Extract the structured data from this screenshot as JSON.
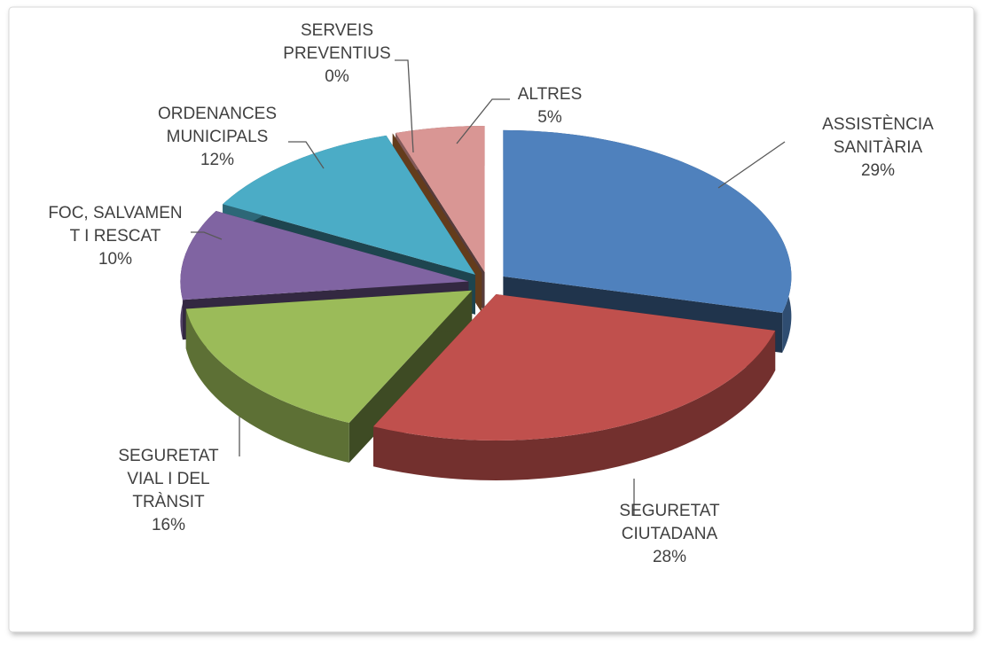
{
  "chart_data": {
    "type": "pie",
    "categories": [
      "ASSISTÈNCIA\nSANITÀRIA",
      "SEGURETAT\nCIUTADANA",
      "SEGURETAT\nVIAL I DEL\nTRÀNSIT",
      "FOC, SALVAMEN\nT I RESCAT",
      "ORDENANCES\nMUNICIPALS",
      "SERVEIS\nPREVENTIUS",
      "ALTRES"
    ],
    "values": [
      29,
      28,
      16,
      10,
      12,
      0,
      5
    ],
    "value_labels": [
      "29%",
      "28%",
      "16%",
      "10%",
      "12%",
      "0%",
      "5%"
    ],
    "colors": [
      "#4f81bd",
      "#c0504d",
      "#9bbb59",
      "#8064a2",
      "#4bacc6",
      "#f79646",
      "#d99694"
    ]
  }
}
